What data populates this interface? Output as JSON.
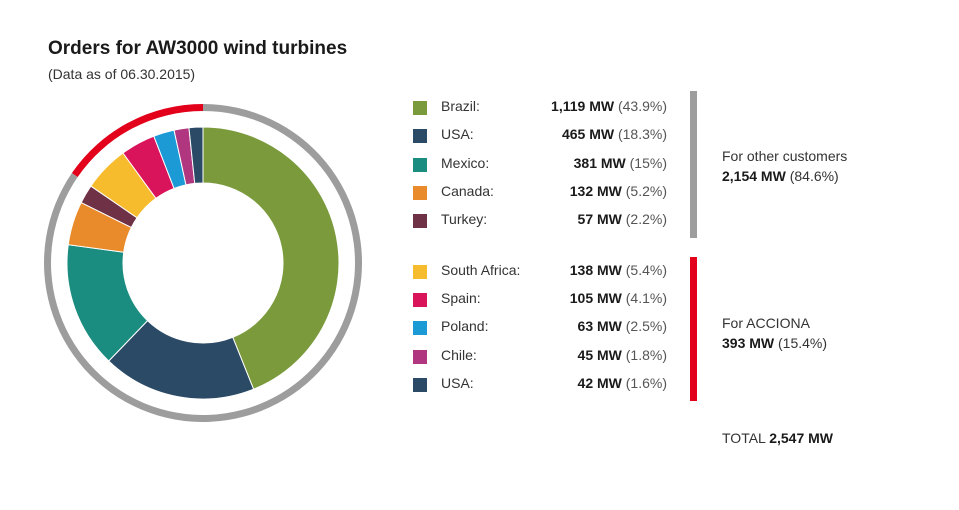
{
  "title": "Orders for AW3000 wind turbines",
  "subtitle": "(Data as of 06.30.2015)",
  "chart_data": {
    "type": "pie",
    "title": "Orders for AW3000 wind turbines",
    "subtitle": "(Data as of 06.30.2015)",
    "unit": "MW",
    "slices": [
      {
        "label": "Brazil",
        "value": 1119,
        "value_text": "1,119 MW",
        "pct_text": "(43.9%)",
        "color": "#7a9a3c",
        "group": 0
      },
      {
        "label": "USA",
        "value": 465,
        "value_text": "465 MW",
        "pct_text": "(18.3%)",
        "color": "#2b4a66",
        "group": 0
      },
      {
        "label": "Mexico",
        "value": 381,
        "value_text": "381 MW",
        "pct_text": "(15%)",
        "color": "#1a8c80",
        "group": 0
      },
      {
        "label": "Canada",
        "value": 132,
        "value_text": "132 MW",
        "pct_text": "(5.2%)",
        "color": "#e98b2a",
        "group": 0
      },
      {
        "label": "Turkey",
        "value": 57,
        "value_text": "57 MW",
        "pct_text": "(2.2%)",
        "color": "#6e3146",
        "group": 0
      },
      {
        "label": "South Africa",
        "value": 138,
        "value_text": "138 MW",
        "pct_text": "(5.4%)",
        "color": "#f7bb2e",
        "group": 1
      },
      {
        "label": "Spain",
        "value": 105,
        "value_text": "105 MW",
        "pct_text": "(4.1%)",
        "color": "#d9145a",
        "group": 1
      },
      {
        "label": "Poland",
        "value": 63,
        "value_text": "63 MW",
        "pct_text": "(2.5%)",
        "color": "#1b9ad6",
        "group": 1
      },
      {
        "label": "Chile",
        "value": 45,
        "value_text": "45 MW",
        "pct_text": "(1.8%)",
        "color": "#b0367f",
        "group": 1
      },
      {
        "label": "USA",
        "value": 42,
        "value_text": "42 MW",
        "pct_text": "(1.6%)",
        "color": "#2b4a66",
        "group": 1
      }
    ],
    "groups": [
      {
        "label": "For other customers",
        "value": 2154,
        "value_text": "2,154 MW",
        "pct_text": "(84.6%)",
        "color": "#9d9d9d"
      },
      {
        "label": "For ACCIONA",
        "value": 393,
        "value_text": "393 MW",
        "pct_text": "(15.4%)",
        "color": "#e2001a"
      }
    ],
    "total": {
      "label": "TOTAL",
      "value": 2547,
      "value_text": "2,547 MW"
    }
  }
}
